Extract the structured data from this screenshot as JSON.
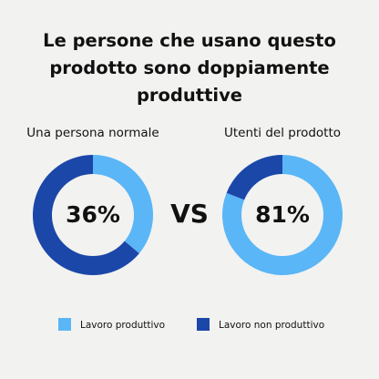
{
  "title": "Le persone che usano questo prodotto sono doppiamente produttive",
  "separator": "VS",
  "chart_data": [
    {
      "type": "donut",
      "title": "Una persona normale",
      "categories": [
        "Lavoro produttivo",
        "Lavoro non produttivo"
      ],
      "values": [
        36,
        64
      ],
      "value_labels": [
        "36%",
        null
      ],
      "colors": [
        "#5ab6f6",
        "#1b47a9"
      ]
    },
    {
      "type": "donut",
      "title": "Utenti del prodotto",
      "categories": [
        "Lavoro produttivo",
        "Lavoro non produttivo"
      ],
      "values": [
        81,
        19
      ],
      "value_labels": [
        "81%",
        null
      ],
      "colors": [
        "#5ab6f6",
        "#1b47a9"
      ]
    }
  ]
}
